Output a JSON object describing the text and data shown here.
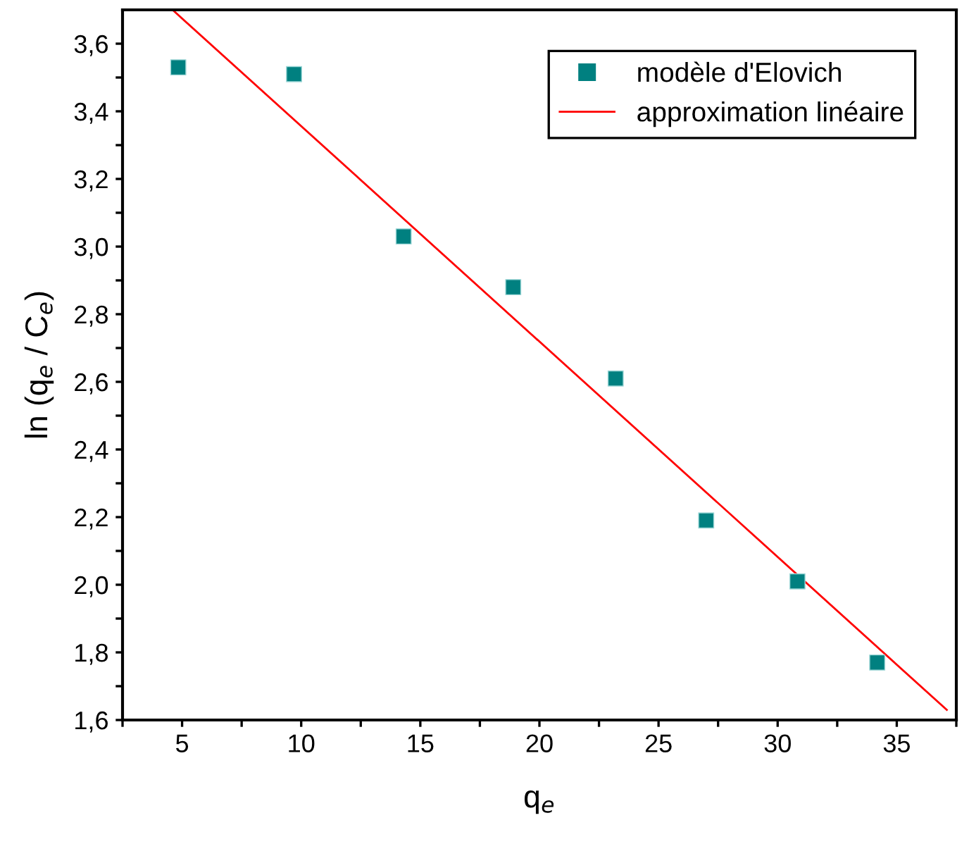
{
  "chart_data": {
    "type": "scatter",
    "xlabel": "q$_{e}$",
    "ylabel": "ln (q$_{e}$ / C$_{e}$)",
    "xlim": [
      2.5,
      37.5
    ],
    "ylim": [
      1.6,
      3.7
    ],
    "xticks": [
      {
        "value": 2.5,
        "label": null
      },
      5,
      {
        "value": 7.5,
        "label": null
      },
      10,
      {
        "value": 12.5,
        "label": null
      },
      15,
      {
        "value": 17.5,
        "label": null
      },
      20,
      {
        "value": 22.5,
        "label": null
      },
      25,
      {
        "value": 27.5,
        "label": null
      },
      30,
      {
        "value": 32.5,
        "label": null
      },
      35,
      {
        "value": 37.5,
        "label": null
      }
    ],
    "yticks": [
      {
        "value": 1.6,
        "label": "1,6"
      },
      {
        "value": 1.7,
        "label": null
      },
      {
        "value": 1.8,
        "label": "1,8"
      },
      {
        "value": 1.9,
        "label": null
      },
      {
        "value": 2.0,
        "label": "2,0"
      },
      {
        "value": 2.1,
        "label": null
      },
      {
        "value": 2.2,
        "label": "2,2"
      },
      {
        "value": 2.3,
        "label": null
      },
      {
        "value": 2.4,
        "label": "2,4"
      },
      {
        "value": 2.5,
        "label": null
      },
      {
        "value": 2.6,
        "label": "2,6"
      },
      {
        "value": 2.7,
        "label": null
      },
      {
        "value": 2.8,
        "label": "2,8"
      },
      {
        "value": 2.9,
        "label": null
      },
      {
        "value": 3.0,
        "label": "3,0"
      },
      {
        "value": 3.1,
        "label": null
      },
      {
        "value": 3.2,
        "label": "3,2"
      },
      {
        "value": 3.3,
        "label": null
      },
      {
        "value": 3.4,
        "label": "3,4"
      },
      {
        "value": 3.5,
        "label": null
      },
      {
        "value": 3.6,
        "label": "3,6"
      }
    ],
    "legend": "top right",
    "grid": false,
    "series": [
      {
        "name": "modèle d'Elovich",
        "marker": "square",
        "color": "#008080",
        "x": [
          4.84,
          9.7,
          14.3,
          18.9,
          23.2,
          27.0,
          30.83,
          34.18
        ],
        "values": [
          3.53,
          3.51,
          3.03,
          2.88,
          2.61,
          2.19,
          2.01,
          1.77
        ]
      },
      {
        "name": "approximation linéaire",
        "type": "line",
        "marker": "none",
        "line_style": "solid",
        "color": "#ff0000",
        "x": [
          4.6,
          37.1
        ],
        "values": [
          3.7,
          1.63
        ]
      }
    ]
  }
}
